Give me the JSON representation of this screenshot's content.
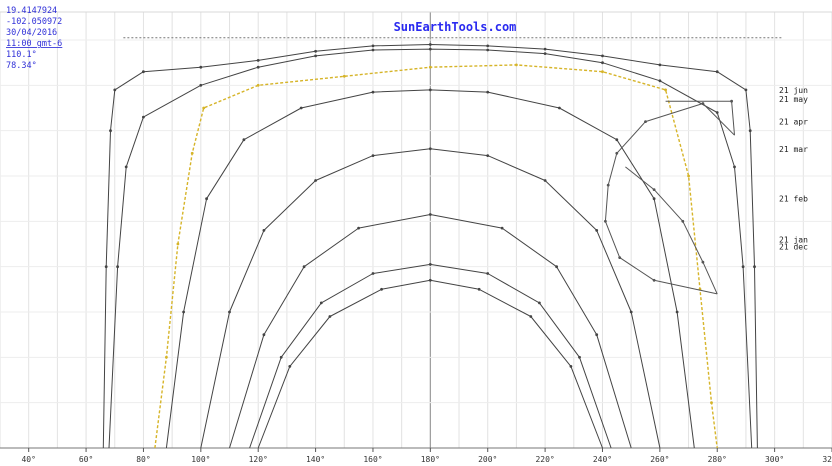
{
  "header": {
    "title": "SunEarthTools.com",
    "info_lines": [
      "19.4147924",
      "-102.050972",
      "30/04/2016",
      "11:00 gmt-6",
      "110.1°",
      "78.34°"
    ]
  },
  "chart_data": {
    "type": "line",
    "title": "SunEarthTools.com",
    "xlabel": "",
    "ylabel": "",
    "xlim": [
      30,
      320
    ],
    "ylim": [
      0,
      90
    ],
    "grid": true,
    "x_ticks": [
      40,
      60,
      80,
      100,
      120,
      140,
      160,
      180,
      200,
      220,
      240,
      260,
      280,
      300,
      320
    ],
    "x_tick_labels": [
      "40°",
      "60°",
      "80°",
      "100°",
      "120°",
      "140°",
      "160°",
      "180°",
      "200°",
      "220°",
      "240°",
      "260°",
      "280°",
      "300°",
      "320°"
    ],
    "series": [
      {
        "name": "21 jun",
        "color": "#444444",
        "points": [
          [
            66,
            0
          ],
          [
            67,
            40
          ],
          [
            68.5,
            70
          ],
          [
            70,
            79
          ],
          [
            80,
            83
          ],
          [
            100,
            84
          ],
          [
            120,
            85.5
          ],
          [
            140,
            87.5
          ],
          [
            160,
            88.7
          ],
          [
            180,
            89
          ],
          [
            200,
            88.7
          ],
          [
            220,
            88
          ],
          [
            240,
            86.5
          ],
          [
            260,
            84.5
          ],
          [
            280,
            83
          ],
          [
            290,
            79
          ],
          [
            291.5,
            70
          ],
          [
            293,
            40
          ],
          [
            294,
            0
          ]
        ]
      },
      {
        "name": "21 may",
        "color": "#444444",
        "points": [
          [
            68,
            0
          ],
          [
            71,
            40
          ],
          [
            74,
            62
          ],
          [
            80,
            73
          ],
          [
            100,
            80
          ],
          [
            120,
            84
          ],
          [
            140,
            86.5
          ],
          [
            160,
            87.8
          ],
          [
            180,
            88
          ],
          [
            200,
            87.8
          ],
          [
            220,
            87
          ],
          [
            240,
            85
          ],
          [
            260,
            81
          ],
          [
            280,
            74
          ],
          [
            286,
            62
          ],
          [
            289,
            40
          ],
          [
            292,
            0
          ]
        ]
      },
      {
        "name": "21 apr",
        "color": "#444444",
        "points": [
          [
            88,
            0
          ],
          [
            94,
            30
          ],
          [
            102,
            55
          ],
          [
            115,
            68
          ],
          [
            135,
            75
          ],
          [
            160,
            78.5
          ],
          [
            180,
            79
          ],
          [
            200,
            78.5
          ],
          [
            225,
            75
          ],
          [
            245,
            68
          ],
          [
            258,
            55
          ],
          [
            266,
            30
          ],
          [
            272,
            0
          ]
        ]
      },
      {
        "name": "21 mar",
        "color": "#444444",
        "points": [
          [
            100,
            0
          ],
          [
            110,
            30
          ],
          [
            122,
            48
          ],
          [
            140,
            59
          ],
          [
            160,
            64.5
          ],
          [
            180,
            66
          ],
          [
            200,
            64.5
          ],
          [
            220,
            59
          ],
          [
            238,
            48
          ],
          [
            250,
            30
          ],
          [
            260,
            0
          ]
        ]
      },
      {
        "name": "21 feb",
        "color": "#444444",
        "points": [
          [
            110,
            0
          ],
          [
            122,
            25
          ],
          [
            136,
            40
          ],
          [
            155,
            48.5
          ],
          [
            180,
            51.5
          ],
          [
            205,
            48.5
          ],
          [
            224,
            40
          ],
          [
            238,
            25
          ],
          [
            250,
            0
          ]
        ]
      },
      {
        "name": "21 jan",
        "color": "#444444",
        "points": [
          [
            117,
            0
          ],
          [
            128,
            20
          ],
          [
            142,
            32
          ],
          [
            160,
            38.5
          ],
          [
            180,
            40.5
          ],
          [
            200,
            38.5
          ],
          [
            218,
            32
          ],
          [
            232,
            20
          ],
          [
            243,
            0
          ]
        ]
      },
      {
        "name": "21 dec",
        "color": "#444444",
        "points": [
          [
            120,
            0
          ],
          [
            131,
            18
          ],
          [
            145,
            29
          ],
          [
            163,
            35
          ],
          [
            180,
            37
          ],
          [
            197,
            35
          ],
          [
            215,
            29
          ],
          [
            229,
            18
          ],
          [
            240,
            0
          ]
        ]
      },
      {
        "name": "30/04/2016",
        "color": "#d6b428",
        "points": [
          [
            84,
            0
          ],
          [
            88,
            20
          ],
          [
            92,
            45
          ],
          [
            97,
            65
          ],
          [
            101,
            75
          ],
          [
            120,
            80
          ],
          [
            150,
            82
          ],
          [
            180,
            84
          ],
          [
            210,
            84.5
          ],
          [
            240,
            83
          ],
          [
            262,
            79
          ],
          [
            270,
            60
          ],
          [
            274,
            35
          ],
          [
            278,
            10
          ],
          [
            280,
            0
          ]
        ]
      },
      {
        "name": "",
        "color": "#555555",
        "points": [
          [
            262,
            76.5
          ],
          [
            285,
            76.5
          ],
          [
            286,
            69
          ]
        ]
      },
      {
        "name": "",
        "color": "#555555",
        "points": [
          [
            286,
            69
          ],
          [
            275,
            76
          ],
          [
            255,
            72
          ],
          [
            245,
            65
          ],
          [
            242,
            58
          ],
          [
            241,
            50
          ],
          [
            246,
            42
          ],
          [
            258,
            37
          ],
          [
            280,
            34
          ]
        ]
      },
      {
        "name": "",
        "color": "#555555",
        "points": [
          [
            280,
            34
          ],
          [
            275,
            41
          ],
          [
            268,
            50
          ],
          [
            258,
            57
          ],
          [
            248,
            62
          ]
        ]
      }
    ],
    "annotations": [
      {
        "type": "dashed_line",
        "from": [
          73,
          90.5
        ],
        "to": [
          303,
          90.5
        ]
      },
      {
        "type": "right_label",
        "text": "21 jun",
        "y": 79
      },
      {
        "type": "right_label",
        "text": "21 may",
        "y": 77
      },
      {
        "type": "right_label",
        "text": "21 apr",
        "y": 72
      },
      {
        "type": "right_label",
        "text": "21 mar",
        "y": 66
      },
      {
        "type": "right_label",
        "text": "21 feb",
        "y": 55
      },
      {
        "type": "right_label",
        "text": "21 jan",
        "y": 46
      },
      {
        "type": "right_label",
        "text": "21 dec",
        "y": 44.5
      }
    ]
  }
}
